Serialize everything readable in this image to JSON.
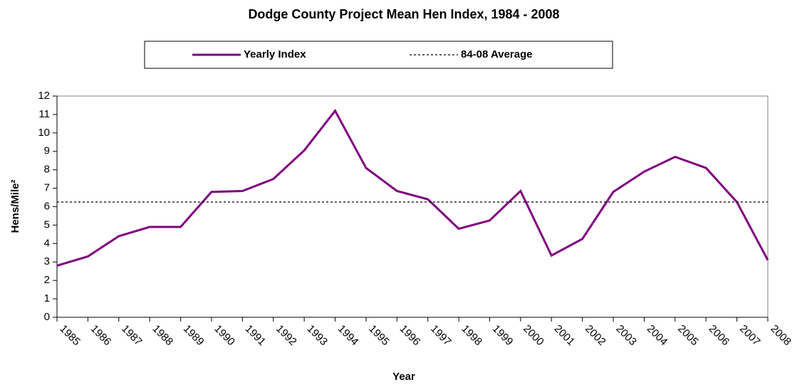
{
  "chart_data": {
    "type": "line",
    "title": "Dodge County Project Mean Hen Index, 1984 - 2008",
    "x_label": "Year",
    "y_label": "Hens/Mile²",
    "categories": [
      "1985",
      "1986",
      "1987",
      "1988",
      "1989",
      "1990",
      "1991",
      "1992",
      "1993",
      "1994",
      "1995",
      "1996",
      "1997",
      "1998",
      "1999",
      "2000",
      "2001",
      "2002",
      "2003",
      "2004",
      "2005",
      "2006",
      "2007",
      "2008"
    ],
    "series": [
      {
        "name": "Yearly Index",
        "color": "#800080",
        "style": "solid",
        "values": [
          2.8,
          3.3,
          4.4,
          4.9,
          4.9,
          6.8,
          6.85,
          7.5,
          9.05,
          11.2,
          8.1,
          6.85,
          6.4,
          4.8,
          5.25,
          6.85,
          3.35,
          4.25,
          6.8,
          7.9,
          8.7,
          8.1,
          6.25,
          3.1
        ]
      },
      {
        "name": "84-08 Average",
        "color": "#000000",
        "style": "dotted",
        "values": [
          6.25,
          6.25,
          6.25,
          6.25,
          6.25,
          6.25,
          6.25,
          6.25,
          6.25,
          6.25,
          6.25,
          6.25,
          6.25,
          6.25,
          6.25,
          6.25,
          6.25,
          6.25,
          6.25,
          6.25,
          6.25,
          6.25,
          6.25,
          6.25
        ]
      }
    ],
    "ylim": [
      0,
      12
    ],
    "yticks": [
      0,
      1,
      2,
      3,
      4,
      5,
      6,
      7,
      8,
      9,
      10,
      11,
      12
    ],
    "grid": false,
    "legend": "top"
  }
}
